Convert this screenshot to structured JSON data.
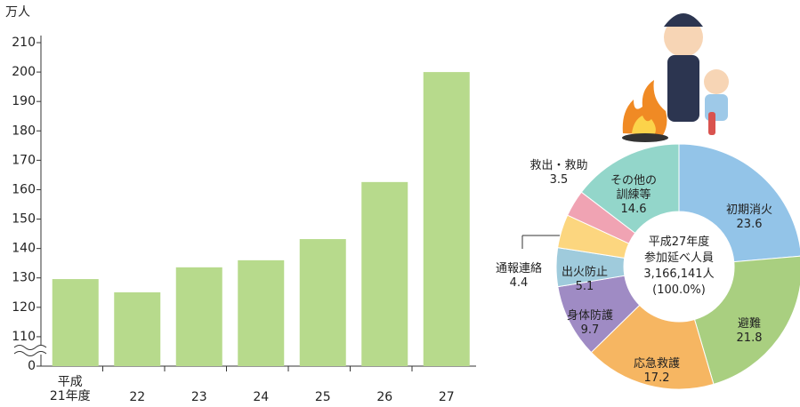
{
  "chart_data": [
    {
      "type": "bar",
      "y_label": "万人",
      "categories": [
        "平成\n21年度",
        "22",
        "23",
        "24",
        "25",
        "26",
        "27"
      ],
      "values": [
        129.6,
        125.1,
        133.6,
        136,
        143.2,
        162.6,
        200
      ],
      "color": "#b7da8c",
      "ylim": [
        0,
        210
      ],
      "axis_break": [
        0,
        100
      ],
      "yticks": [
        0,
        110,
        120,
        130,
        140,
        150,
        160,
        170,
        180,
        190,
        200,
        210
      ]
    },
    {
      "type": "donut",
      "categories": [
        "初期消火",
        "避難",
        "応急救護",
        "身体防護",
        "出火防止",
        "通報連絡",
        "救出・救助",
        "その他の\n訓練等"
      ],
      "values": [
        23.6,
        21.8,
        17.2,
        9.7,
        5.1,
        4.4,
        3.5,
        14.6
      ],
      "colors": [
        "#93c4e8",
        "#a9cf80",
        "#f6b662",
        "#9f8bc4",
        "#9fcbdc",
        "#fcd67f",
        "#f0a3b3",
        "#93d6ca"
      ],
      "center_text": [
        "平成27年度",
        "参加延べ人員",
        "3,166,141人",
        "(100.0%)"
      ]
    }
  ]
}
